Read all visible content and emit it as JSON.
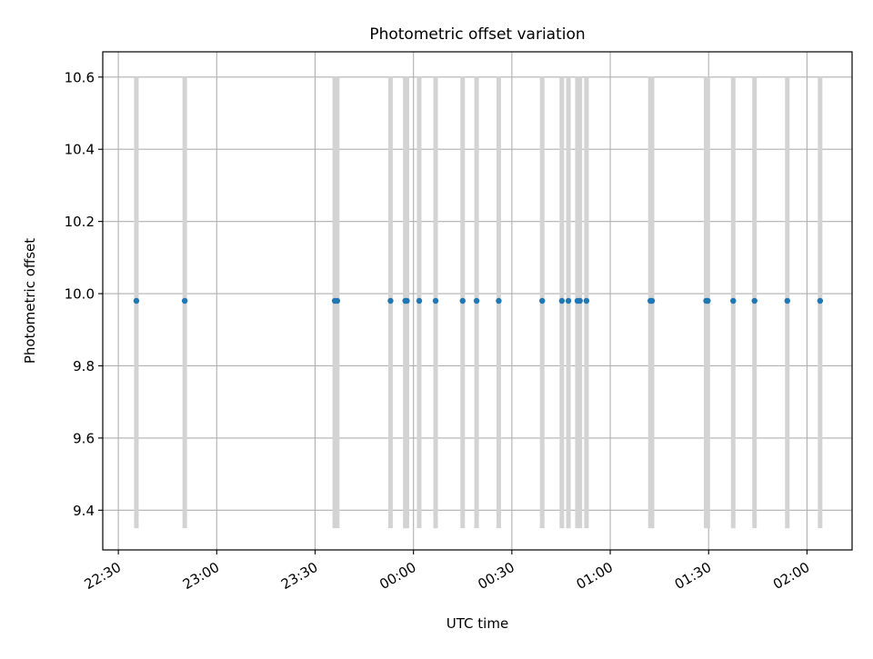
{
  "chart_data": {
    "type": "scatter",
    "title": "Photometric offset variation",
    "xlabel": "UTC time",
    "ylabel": "Photometric offset",
    "xlim": [
      "22:25:15",
      "02:13:45"
    ],
    "ylim": [
      9.29,
      10.67
    ],
    "x_tick_labels": [
      "22:30",
      "23:00",
      "23:30",
      "00:00",
      "00:30",
      "01:00",
      "01:30",
      "02:00"
    ],
    "x_ticks": [
      "22:30",
      "23:00",
      "23:30",
      "00:00",
      "00:30",
      "01:00",
      "01:30",
      "02:00"
    ],
    "x_tick_rotation": "30 degrees, right-aligned",
    "y_tick_labels": [
      "9.4",
      "9.6",
      "9.8",
      "10.0",
      "10.2",
      "10.4",
      "10.6"
    ],
    "y_ticks": [
      9.4,
      9.6,
      9.8,
      10.0,
      10.2,
      10.4,
      10.6
    ],
    "grid": true,
    "legend": "none",
    "series": [
      {
        "marker_color": "#1f77b4",
        "errorbar_color": "#d3d3d3",
        "points": [
          {
            "x": "22:35:30",
            "y": 9.98,
            "yerr_low": 9.35,
            "yerr_high": 10.6
          },
          {
            "x": "22:50:15",
            "y": 9.98,
            "yerr_low": 9.35,
            "yerr_high": 10.6
          },
          {
            "x": "23:36:00",
            "y": 9.98,
            "yerr_low": 9.35,
            "yerr_high": 10.6
          },
          {
            "x": "23:36:45",
            "y": 9.98,
            "yerr_low": 9.35,
            "yerr_high": 10.6
          },
          {
            "x": "23:53:00",
            "y": 9.98,
            "yerr_low": 9.35,
            "yerr_high": 10.6
          },
          {
            "x": "23:57:30",
            "y": 9.98,
            "yerr_low": 9.35,
            "yerr_high": 10.6
          },
          {
            "x": "23:58:00",
            "y": 9.98,
            "yerr_low": 9.35,
            "yerr_high": 10.6
          },
          {
            "x": "00:01:45",
            "y": 9.98,
            "yerr_low": 9.35,
            "yerr_high": 10.6
          },
          {
            "x": "00:06:45",
            "y": 9.98,
            "yerr_low": 9.35,
            "yerr_high": 10.6
          },
          {
            "x": "00:15:00",
            "y": 9.98,
            "yerr_low": 9.35,
            "yerr_high": 10.6
          },
          {
            "x": "00:19:15",
            "y": 9.98,
            "yerr_low": 9.35,
            "yerr_high": 10.6
          },
          {
            "x": "00:26:00",
            "y": 9.98,
            "yerr_low": 9.35,
            "yerr_high": 10.6
          },
          {
            "x": "00:39:15",
            "y": 9.98,
            "yerr_low": 9.35,
            "yerr_high": 10.6
          },
          {
            "x": "00:45:15",
            "y": 9.98,
            "yerr_low": 9.35,
            "yerr_high": 10.6
          },
          {
            "x": "00:47:15",
            "y": 9.98,
            "yerr_low": 9.35,
            "yerr_high": 10.6
          },
          {
            "x": "00:50:00",
            "y": 9.98,
            "yerr_low": 9.35,
            "yerr_high": 10.6
          },
          {
            "x": "00:50:45",
            "y": 9.98,
            "yerr_low": 9.35,
            "yerr_high": 10.6
          },
          {
            "x": "00:52:45",
            "y": 9.98,
            "yerr_low": 9.35,
            "yerr_high": 10.6
          },
          {
            "x": "01:12:15",
            "y": 9.98,
            "yerr_low": 9.35,
            "yerr_high": 10.6
          },
          {
            "x": "01:12:45",
            "y": 9.98,
            "yerr_low": 9.35,
            "yerr_high": 10.6
          },
          {
            "x": "01:29:15",
            "y": 9.98,
            "yerr_low": 9.35,
            "yerr_high": 10.6
          },
          {
            "x": "01:29:45",
            "y": 9.98,
            "yerr_low": 9.35,
            "yerr_high": 10.6
          },
          {
            "x": "01:37:30",
            "y": 9.98,
            "yerr_low": 9.35,
            "yerr_high": 10.6
          },
          {
            "x": "01:44:00",
            "y": 9.98,
            "yerr_low": 9.35,
            "yerr_high": 10.6
          },
          {
            "x": "01:54:00",
            "y": 9.98,
            "yerr_low": 9.35,
            "yerr_high": 10.6
          },
          {
            "x": "02:04:00",
            "y": 9.98,
            "yerr_low": 9.35,
            "yerr_high": 10.6
          }
        ]
      }
    ]
  }
}
